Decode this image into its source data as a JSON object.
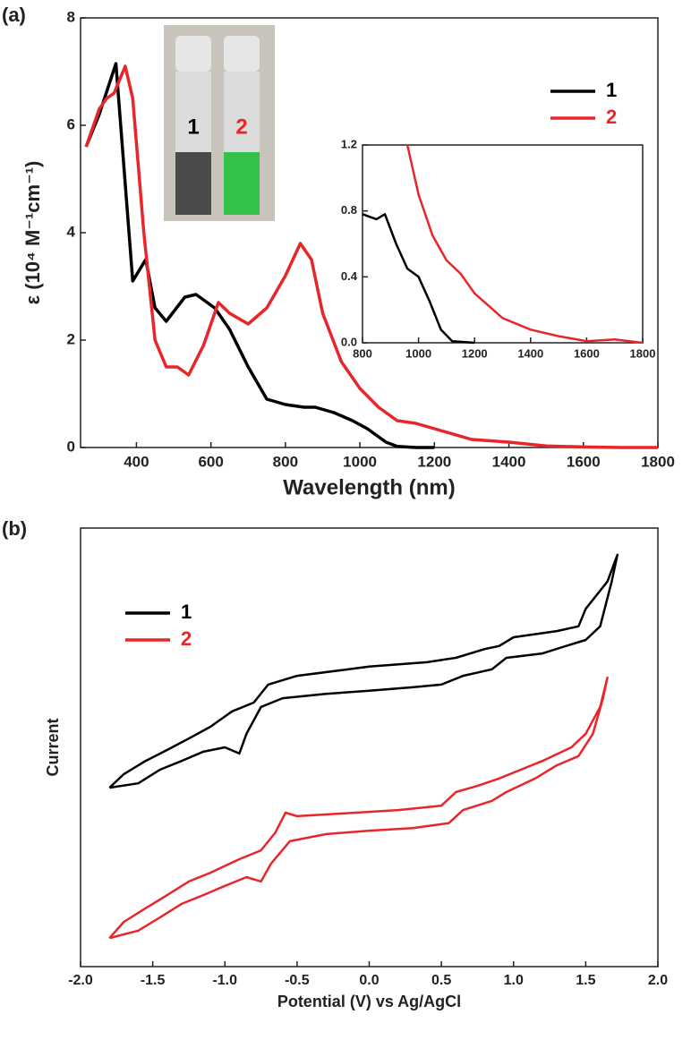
{
  "chart_data": [
    {
      "type": "line",
      "panel_label": "(a)",
      "xlabel": "Wavelength (nm)",
      "ylabel": "ε (10⁴ M⁻¹cm⁻¹)",
      "xlim": [
        250,
        1800
      ],
      "ylim": [
        0,
        8
      ],
      "xticks": [
        400,
        600,
        800,
        1000,
        1200,
        1400,
        1600,
        1800
      ],
      "yticks": [
        0,
        2,
        4,
        6,
        8
      ],
      "legend": "upper right",
      "photo_labels": [
        "1",
        "2"
      ],
      "series": [
        {
          "name": "1",
          "color": "#000000",
          "x": [
            265,
            300,
            345,
            390,
            425,
            450,
            480,
            530,
            560,
            610,
            650,
            700,
            750,
            800,
            850,
            880,
            930,
            980,
            1020,
            1070,
            1100,
            1150,
            1200
          ],
          "values": [
            5.6,
            6.2,
            7.15,
            3.1,
            3.5,
            2.6,
            2.35,
            2.8,
            2.85,
            2.6,
            2.2,
            1.5,
            0.9,
            0.8,
            0.75,
            0.75,
            0.65,
            0.5,
            0.35,
            0.1,
            0.02,
            0,
            0
          ]
        },
        {
          "name": "2",
          "color": "#e8262a",
          "x": [
            265,
            300,
            320,
            340,
            370,
            390,
            420,
            450,
            480,
            510,
            540,
            580,
            620,
            650,
            700,
            750,
            800,
            840,
            870,
            900,
            950,
            1000,
            1050,
            1100,
            1150,
            1200,
            1300,
            1400,
            1500,
            1600,
            1700,
            1800
          ],
          "values": [
            5.6,
            6.3,
            6.5,
            6.6,
            7.1,
            6.5,
            4.0,
            2.0,
            1.5,
            1.5,
            1.35,
            1.9,
            2.7,
            2.5,
            2.3,
            2.6,
            3.2,
            3.8,
            3.5,
            2.5,
            1.6,
            1.1,
            0.75,
            0.5,
            0.45,
            0.35,
            0.15,
            0.1,
            0.03,
            0.01,
            0,
            0
          ]
        }
      ]
    },
    {
      "type": "line",
      "xlim": [
        800,
        1800
      ],
      "ylim": [
        0,
        1.2
      ],
      "xticks": [
        800,
        1000,
        1200,
        1400,
        1600,
        1800
      ],
      "yticks": [
        {
          "value": 0,
          "label": "0.0"
        },
        0.4,
        0.8,
        1.2
      ],
      "series": [
        {
          "name": "1",
          "color": "#000000",
          "x": [
            800,
            850,
            880,
            920,
            960,
            1000,
            1040,
            1080,
            1120,
            1200
          ],
          "values": [
            0.78,
            0.75,
            0.78,
            0.6,
            0.45,
            0.4,
            0.25,
            0.08,
            0.01,
            0
          ]
        },
        {
          "name": "2",
          "color": "#e8262a",
          "x": [
            960,
            1000,
            1050,
            1100,
            1150,
            1200,
            1300,
            1400,
            1500,
            1600,
            1700,
            1800
          ],
          "values": [
            1.2,
            0.9,
            0.65,
            0.5,
            0.42,
            0.3,
            0.15,
            0.08,
            0.04,
            0.01,
            0.02,
            0
          ]
        }
      ]
    },
    {
      "type": "line",
      "panel_label": "(b)",
      "xlabel": "Potential (V) vs Ag/AgCl",
      "ylabel": "Current",
      "xlim": [
        -2,
        2
      ],
      "ylim": [
        0,
        100
      ],
      "xticks": [
        {
          "value": -2,
          "label": "-2.0"
        },
        -1.5,
        {
          "value": -1,
          "label": "-1.0"
        },
        -0.5,
        {
          "value": 0,
          "label": "0.0"
        },
        0.5,
        {
          "value": 1,
          "label": "1.0"
        },
        1.5,
        {
          "value": 2,
          "label": "2.0"
        }
      ],
      "legend": "upper left",
      "series": [
        {
          "name": "1",
          "color": "#000000",
          "x": [
            -1.8,
            -1.6,
            -1.45,
            -1.3,
            -1.15,
            -1.0,
            -0.9,
            -0.85,
            -0.75,
            -0.6,
            -0.3,
            0,
            0.3,
            0.5,
            0.65,
            0.85,
            0.95,
            1.2,
            1.4,
            1.5,
            1.6,
            1.68,
            1.72,
            1.65,
            1.5,
            1.45,
            1.3,
            1.0,
            0.9,
            0.8,
            0.6,
            0.4,
            0,
            -0.5,
            -0.7,
            -0.8,
            -0.95,
            -1.1,
            -1.25,
            -1.4,
            -1.55,
            -1.7,
            -1.8
          ],
          "values": [
            40.8,
            41.8,
            44.9,
            46.9,
            49.0,
            50.0,
            48.6,
            53.1,
            59.2,
            61.2,
            62.2,
            62.9,
            63.7,
            64.3,
            66.3,
            67.8,
            70.4,
            71.4,
            73.5,
            74.5,
            77.6,
            87.8,
            93.9,
            87.8,
            81.6,
            77.6,
            76.5,
            75.1,
            73.1,
            72.4,
            70.4,
            69.4,
            68.4,
            66.3,
            64.3,
            60.2,
            58.2,
            54.7,
            52.0,
            49.4,
            46.9,
            43.9,
            40.8
          ]
        },
        {
          "name": "2",
          "color": "#e8262a",
          "x": [
            -1.8,
            -1.6,
            -1.45,
            -1.3,
            -1.15,
            -1.0,
            -0.85,
            -0.75,
            -0.68,
            -0.55,
            -0.3,
            0,
            0.3,
            0.55,
            0.65,
            0.85,
            0.95,
            1.15,
            1.3,
            1.45,
            1.55,
            1.62,
            1.65,
            1.6,
            1.5,
            1.4,
            1.2,
            1.05,
            0.9,
            0.75,
            0.6,
            0.5,
            0.2,
            -0.3,
            -0.5,
            -0.58,
            -0.65,
            -0.75,
            -0.9,
            -1.1,
            -1.25,
            -1.4,
            -1.55,
            -1.7,
            -1.8
          ],
          "values": [
            6.5,
            8.2,
            11.2,
            14.3,
            16.3,
            18.4,
            20.4,
            19.4,
            23.5,
            28.6,
            30.2,
            31.0,
            31.6,
            32.7,
            35.7,
            37.8,
            39.8,
            42.9,
            45.9,
            48.0,
            53.1,
            61.2,
            65.9,
            59.2,
            53.1,
            50.0,
            46.9,
            44.9,
            42.9,
            41.2,
            39.8,
            36.7,
            35.7,
            34.7,
            34.3,
            35.1,
            30.6,
            26.5,
            24.5,
            21.4,
            19.4,
            16.3,
            13.3,
            10.2,
            6.5
          ]
        }
      ]
    }
  ]
}
